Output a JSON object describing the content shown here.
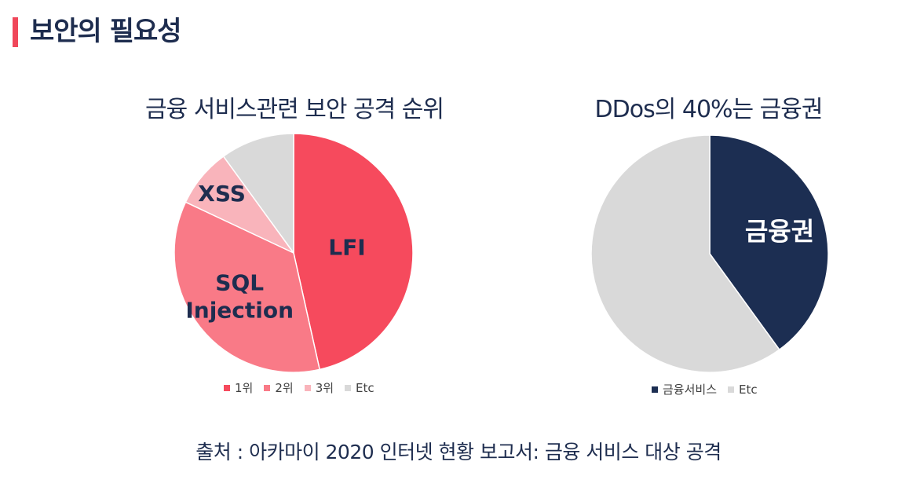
{
  "page": {
    "title": "보안의 필요성"
  },
  "colors": {
    "accent": "#f0475a",
    "navy": "#1e2d4f",
    "rank1": "#f64a5d",
    "rank2": "#f97a87",
    "rank3": "#f9b4bb",
    "etc": "#d9d9d9",
    "finance": "#1c2e52"
  },
  "chart_data": [
    {
      "type": "pie",
      "title": "금융 서비스관련 보안 공격 순위",
      "categories": [
        "1위",
        "2위",
        "3위",
        "Etc"
      ],
      "values": [
        46.5,
        35.5,
        8,
        10
      ],
      "slice_labels": [
        "LFI",
        "SQL Injection",
        "XSS",
        ""
      ],
      "colors": [
        "#f64a5d",
        "#f97a87",
        "#f9b4bb",
        "#d9d9d9"
      ],
      "legend": "bottom"
    },
    {
      "type": "pie",
      "title": "DDos의 40%는 금융권",
      "categories": [
        "금융서비스",
        "Etc"
      ],
      "values": [
        40,
        60
      ],
      "slice_labels": [
        "금융권",
        ""
      ],
      "colors": [
        "#1c2e52",
        "#d9d9d9"
      ],
      "legend": "bottom"
    }
  ],
  "footer": {
    "source": "출처 : 아카마이 2020 인터넷 현황 보고서: 금융 서비스 대상 공격"
  }
}
